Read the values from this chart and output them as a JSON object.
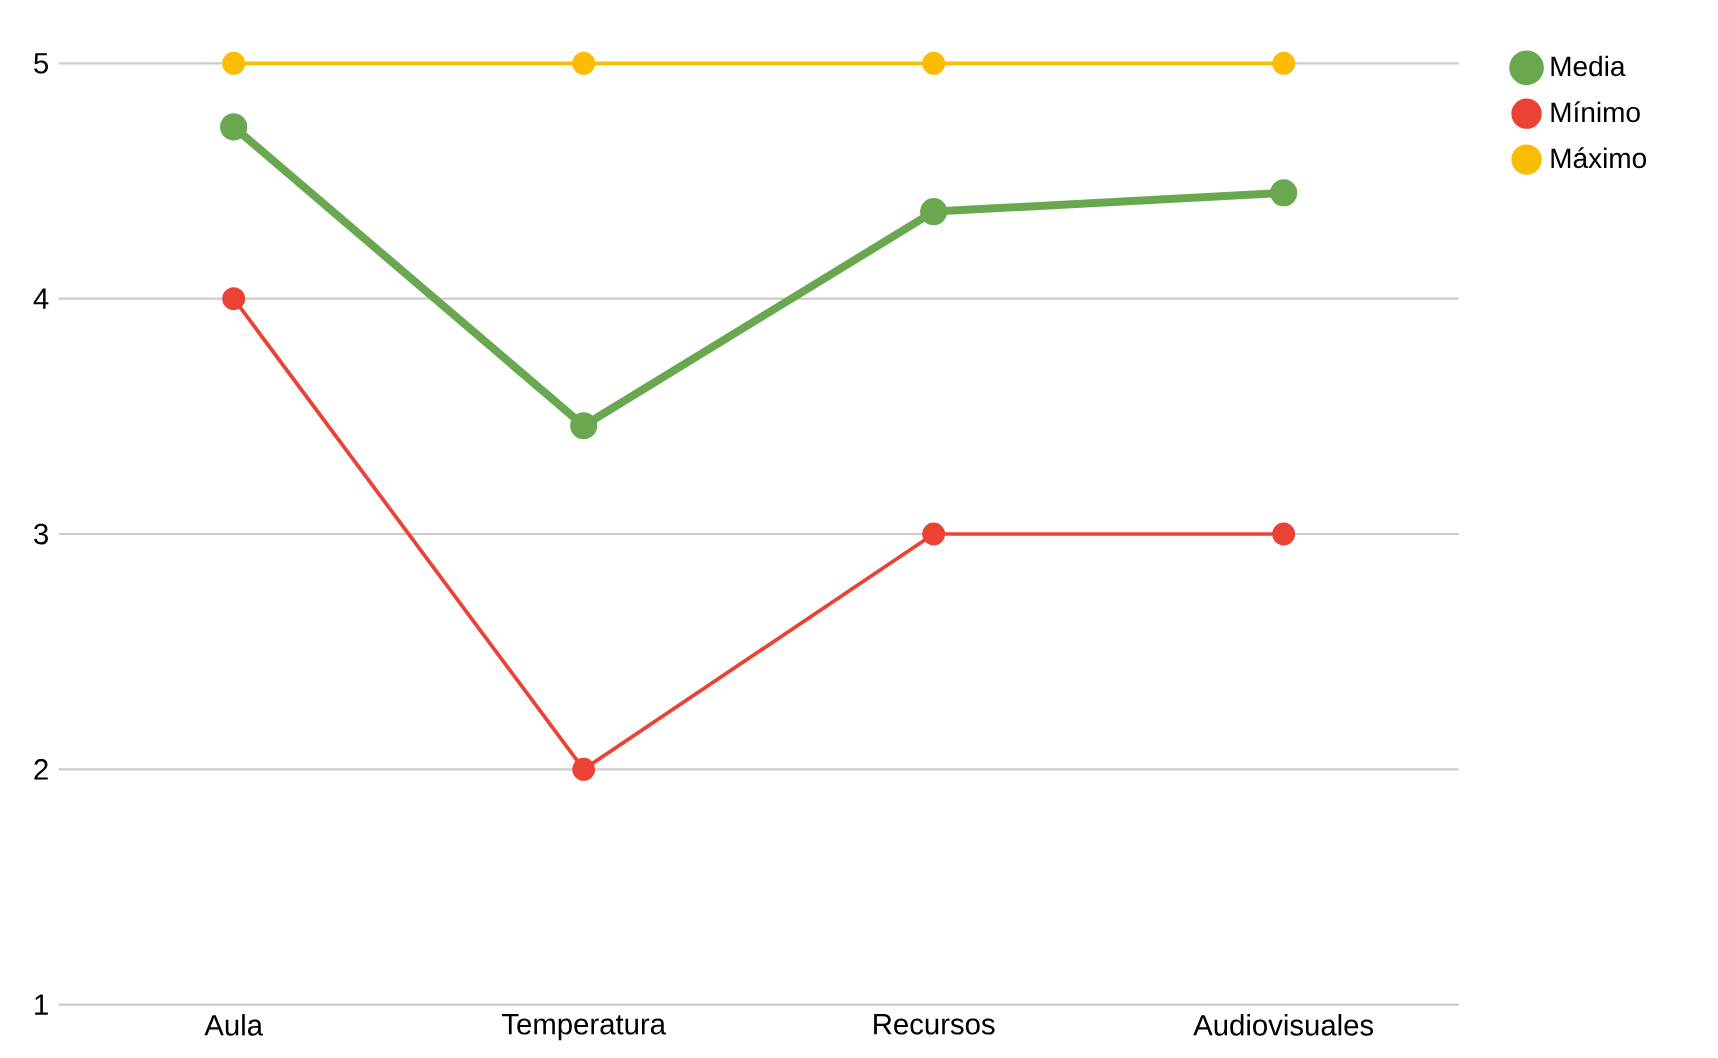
{
  "chart_data": {
    "type": "line",
    "categories": [
      "Aula",
      "Temperatura",
      "Recursos",
      "Audiovisuales"
    ],
    "series": [
      {
        "name": "Media",
        "color": "#6aa84f",
        "values": [
          4.73,
          3.46,
          4.37,
          4.45
        ]
      },
      {
        "name": "Mínimo",
        "color": "#ea4335",
        "values": [
          4,
          2,
          3,
          3
        ]
      },
      {
        "name": "Máximo",
        "color": "#fbbc04",
        "values": [
          5,
          5,
          5,
          5
        ]
      }
    ],
    "ylim": [
      1,
      5
    ],
    "yticks": [
      1,
      2,
      3,
      4,
      5
    ],
    "grid": "y",
    "legend": "top right",
    "marker": "circle",
    "line_style": "solid"
  }
}
